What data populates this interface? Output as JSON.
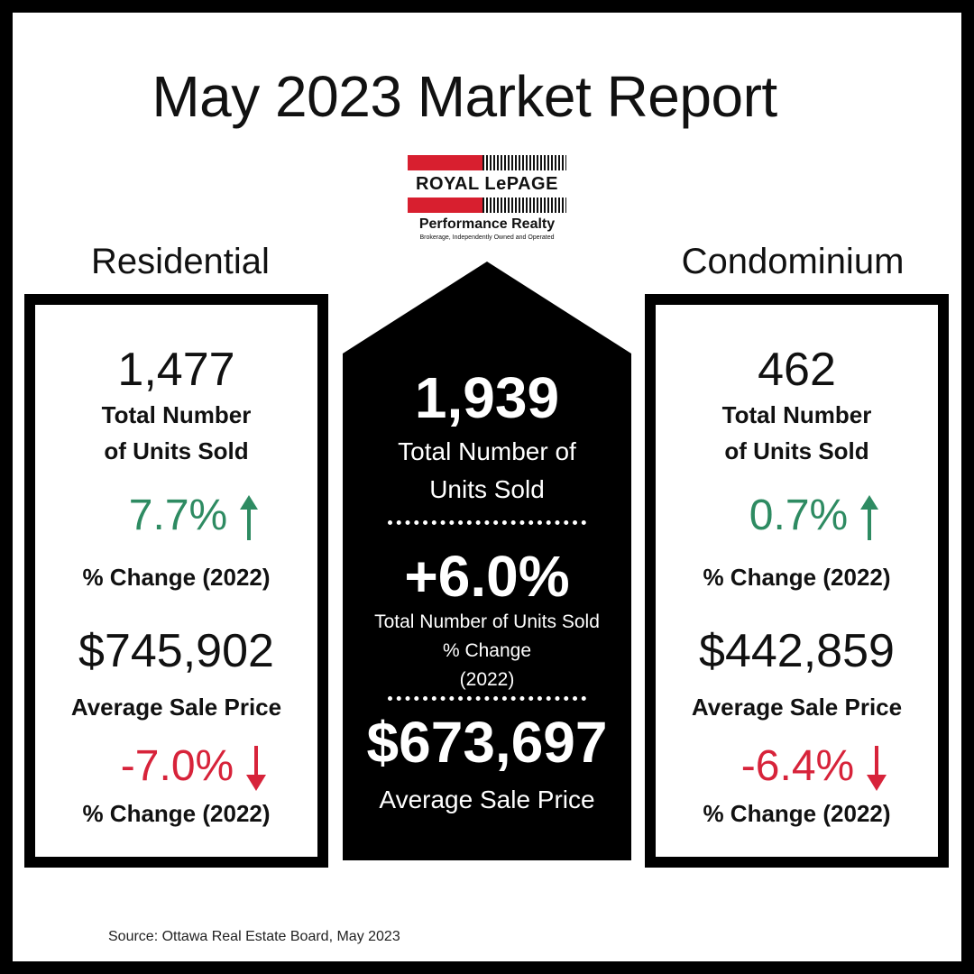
{
  "title": "May 2023 Market Report",
  "logo": {
    "brand": "ROYAL LePAGE",
    "office": "Performance Realty",
    "tagline": "Brokerage, Independently Owned and Operated",
    "brand_color": "#d81f2f"
  },
  "residential": {
    "heading": "Residential",
    "units_sold": "1,477",
    "units_label_line1": "Total Number",
    "units_label_line2": "of Units Sold",
    "units_change": "7.7%",
    "units_change_direction": "up",
    "units_change_label": "% Change (2022)",
    "avg_price": "$745,902",
    "avg_price_label": "Average Sale Price",
    "price_change": "-7.0%",
    "price_change_direction": "down",
    "price_change_label": "% Change (2022)"
  },
  "total": {
    "units_sold": "1,939",
    "units_label_line1": "Total Number of",
    "units_label_line2": "Units Sold",
    "change": "+6.0%",
    "change_label_line1": "Total Number of Units Sold",
    "change_label_line2": "% Change",
    "change_label_line3": "(2022)",
    "avg_price": "$673,697",
    "avg_price_label": "Average Sale Price"
  },
  "condominium": {
    "heading": "Condominium",
    "units_sold": "462",
    "units_label_line1": "Total Number",
    "units_label_line2": "of Units Sold",
    "units_change": "0.7%",
    "units_change_direction": "up",
    "units_change_label": "% Change (2022)",
    "avg_price": "$442,859",
    "avg_price_label": "Average Sale Price",
    "price_change": "-6.4%",
    "price_change_direction": "down",
    "price_change_label": "% Change (2022)"
  },
  "colors": {
    "increase": "#2e8b62",
    "decrease": "#d7233a"
  },
  "source": "Source: Ottawa Real Estate Board, May 2023"
}
